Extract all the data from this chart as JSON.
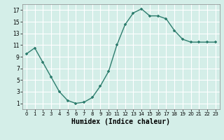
{
  "x": [
    0,
    1,
    2,
    3,
    4,
    5,
    6,
    7,
    8,
    9,
    10,
    11,
    12,
    13,
    14,
    15,
    16,
    17,
    18,
    19,
    20,
    21,
    22,
    23
  ],
  "y": [
    9.5,
    10.5,
    8.0,
    5.5,
    3.0,
    1.5,
    1.0,
    1.2,
    2.0,
    4.0,
    6.5,
    11.0,
    14.5,
    16.5,
    17.2,
    16.0,
    16.0,
    15.5,
    13.5,
    12.0,
    11.5,
    11.5,
    11.5,
    11.5
  ],
  "line_color": "#2e7d6e",
  "marker_color": "#2e7d6e",
  "bg_color": "#d4eee8",
  "grid_color": "#ffffff",
  "xlabel": "Humidex (Indice chaleur)",
  "xlabel_fontsize": 7,
  "xlim": [
    -0.5,
    23.5
  ],
  "ylim": [
    0,
    18
  ],
  "yticks": [
    1,
    3,
    5,
    7,
    9,
    11,
    13,
    15,
    17
  ],
  "xticks": [
    0,
    1,
    2,
    3,
    4,
    5,
    6,
    7,
    8,
    9,
    10,
    11,
    12,
    13,
    14,
    15,
    16,
    17,
    18,
    19,
    20,
    21,
    22,
    23
  ]
}
